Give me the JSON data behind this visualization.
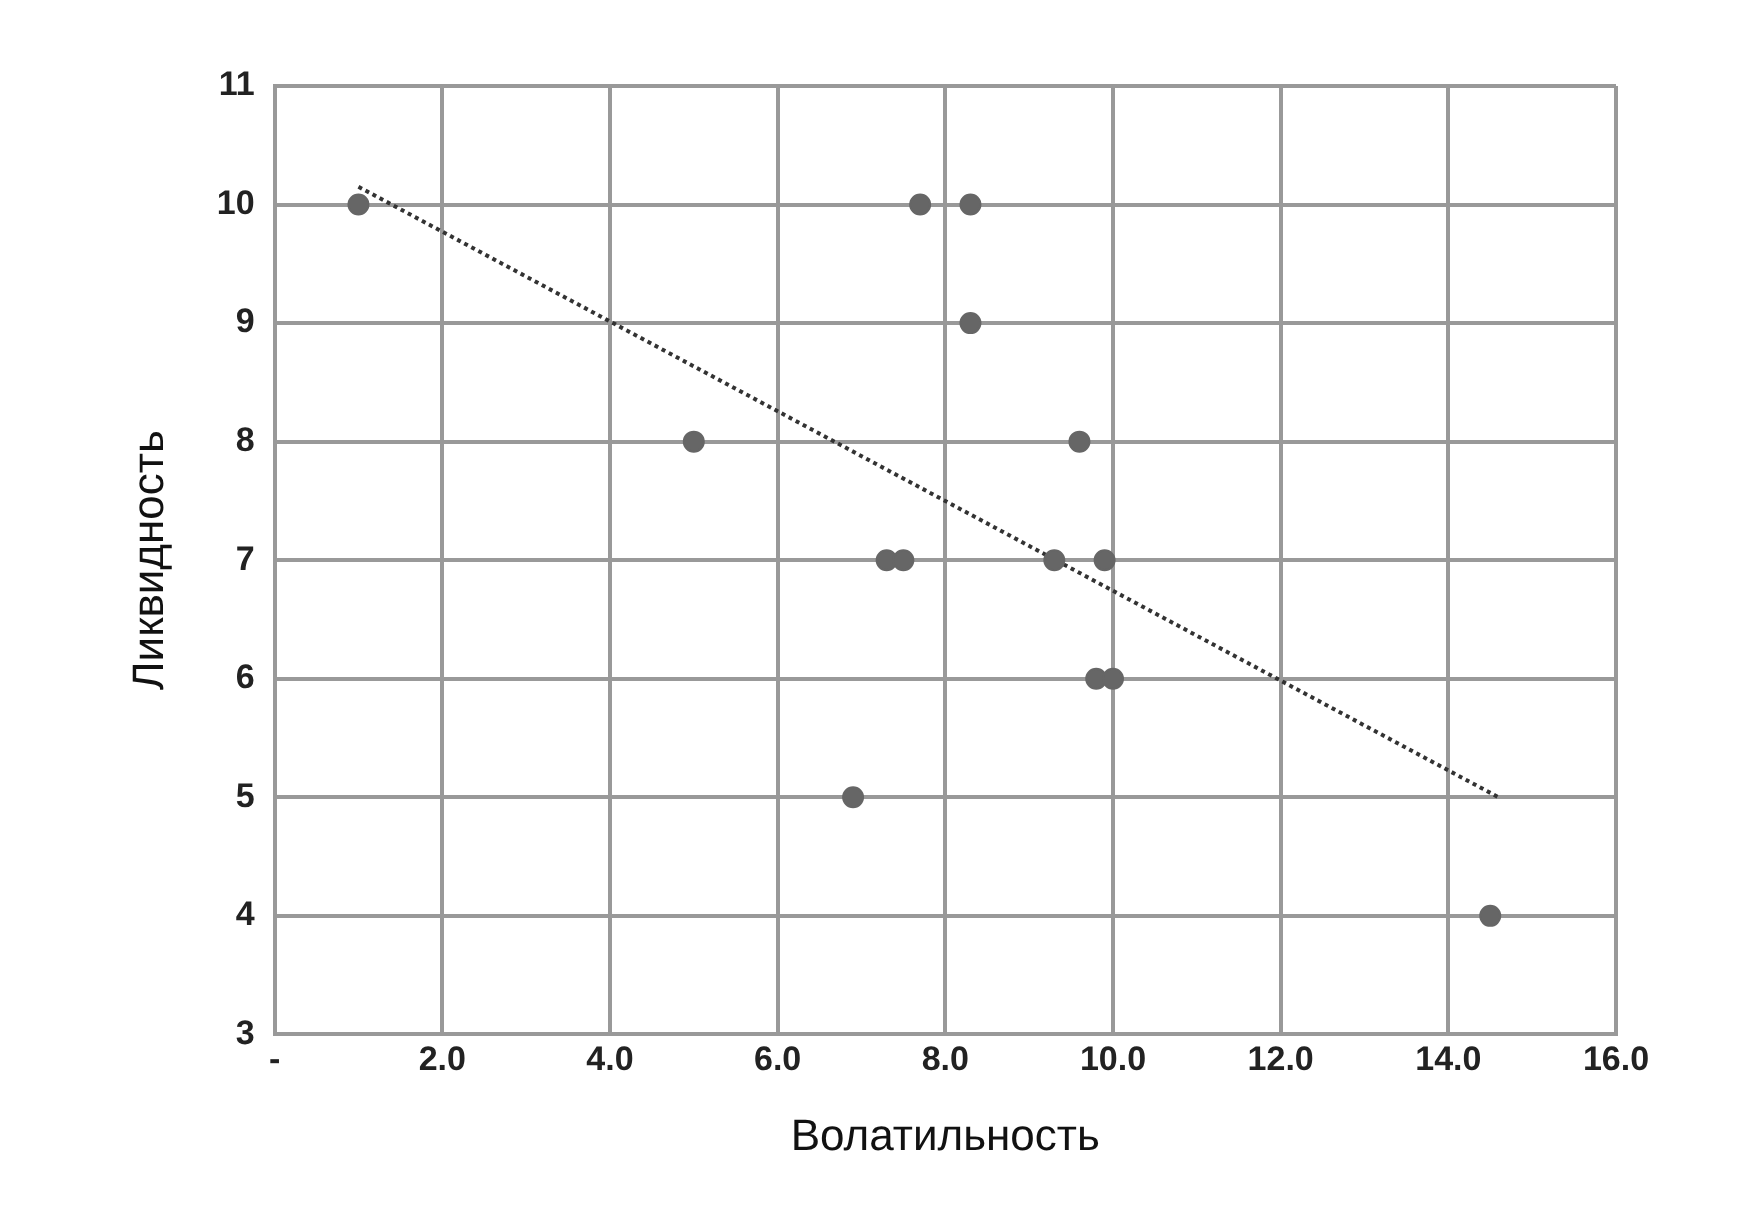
{
  "chart_data": {
    "type": "scatter",
    "xlabel": "Волатильность",
    "ylabel": "Ликвидность",
    "xlim": [
      0,
      16
    ],
    "xticks": [
      {
        "value": 0,
        "label": "-"
      },
      {
        "value": 2,
        "label": "2.0"
      },
      {
        "value": 4,
        "label": "4.0"
      },
      {
        "value": 6,
        "label": "6.0"
      },
      {
        "value": 8,
        "label": "8.0"
      },
      {
        "value": 10,
        "label": "10.0"
      },
      {
        "value": 12,
        "label": "12.0"
      },
      {
        "value": 14,
        "label": "14.0"
      },
      {
        "value": 16,
        "label": "16.0"
      }
    ],
    "ylim": [
      3,
      11
    ],
    "yticks": [
      3,
      4,
      5,
      6,
      7,
      8,
      9,
      10,
      11
    ],
    "grid": true,
    "legend": false,
    "series": [
      {
        "type": "scatter",
        "color": "#666666",
        "marker": "circle",
        "x": [
          1.0,
          7.7,
          8.3,
          8.3,
          5.0,
          9.6,
          7.3,
          7.5,
          9.3,
          9.9,
          9.8,
          10.0,
          6.9,
          14.5
        ],
        "values": [
          10,
          10,
          10,
          9,
          8,
          8,
          7,
          7,
          7,
          7,
          6,
          6,
          5,
          4
        ]
      },
      {
        "type": "line",
        "color": "#333333",
        "line_style": "dotted",
        "marker": "none",
        "x": [
          1.0,
          14.6
        ],
        "values": [
          10.15,
          5.0
        ]
      }
    ]
  }
}
